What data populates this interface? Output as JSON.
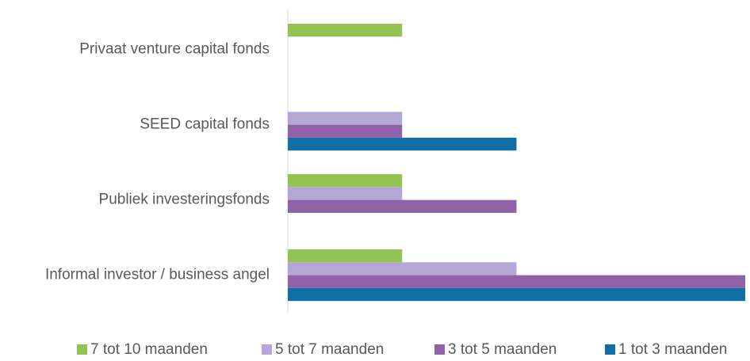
{
  "chart_data": {
    "type": "bar",
    "orientation": "horizontal",
    "categories": [
      "Privaat venture capital fonds",
      "SEED capital fonds",
      "Publiek investeringsfonds",
      "Informal investor / business angel"
    ],
    "series": [
      {
        "name": "7 tot 10 maanden",
        "color": "#92c353",
        "values": [
          1,
          0,
          1,
          1
        ]
      },
      {
        "name": "5 tot 7 maanden",
        "color": "#b4a7d6",
        "values": [
          0,
          1,
          1,
          2
        ]
      },
      {
        "name": "3 tot 5 maanden",
        "color": "#9062a8",
        "values": [
          0,
          1,
          2,
          4
        ]
      },
      {
        "name": "1 tot 3 maanden",
        "color": "#0f6fa6",
        "values": [
          0,
          2,
          0,
          4
        ]
      }
    ],
    "xlim": [
      0,
      4
    ]
  }
}
